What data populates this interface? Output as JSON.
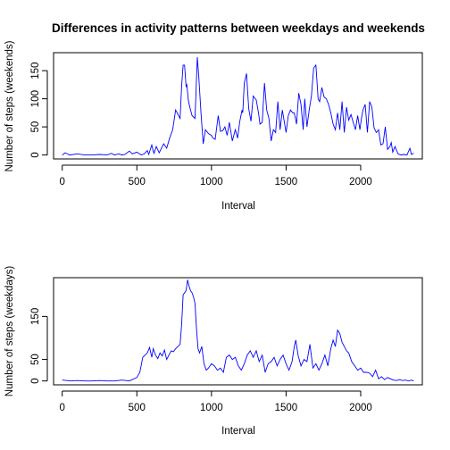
{
  "chart_data": [
    {
      "type": "line",
      "title": "Differences in activity patterns between weekdays and weekends",
      "xlabel": "Interval",
      "ylabel": "Number of steps (weekends)",
      "xlim": [
        -58,
        2413
      ],
      "ylim": [
        -7,
        182
      ],
      "xticks": [
        0,
        500,
        1000,
        1500,
        2000
      ],
      "yticks": [
        0,
        50,
        100,
        150
      ],
      "grid": false,
      "line_color": "#0000ff",
      "series": [
        {
          "x": [
            0,
            20,
            50,
            100,
            150,
            200,
            250,
            300,
            330,
            350,
            380,
            400,
            420,
            450,
            470,
            500,
            530,
            550,
            570,
            580,
            600,
            610,
            615,
            630,
            650,
            680,
            700,
            720,
            740,
            760,
            790,
            800,
            810,
            820,
            830,
            835,
            845,
            855,
            870,
            890,
            905,
            915,
            930,
            945,
            960,
            980,
            1000,
            1010,
            1025,
            1045,
            1060,
            1075,
            1090,
            1105,
            1120,
            1140,
            1160,
            1175,
            1190,
            1205,
            1210,
            1220,
            1235,
            1250,
            1265,
            1280,
            1300,
            1315,
            1325,
            1340,
            1355,
            1370,
            1385,
            1400,
            1415,
            1430,
            1445,
            1460,
            1475,
            1500,
            1515,
            1530,
            1545,
            1555,
            1570,
            1585,
            1600,
            1615,
            1625,
            1640,
            1655,
            1670,
            1685,
            1700,
            1715,
            1725,
            1740,
            1755,
            1770,
            1785,
            1800,
            1815,
            1830,
            1845,
            1860,
            1875,
            1890,
            1905,
            1920,
            1935,
            1950,
            1965,
            1980,
            1995,
            2005,
            2015,
            2030,
            2045,
            2060,
            2075,
            2090,
            2105,
            2120,
            2135,
            2150,
            2165,
            2180,
            2195,
            2205,
            2215,
            2230,
            2250,
            2270,
            2290,
            2310,
            2330,
            2340,
            2355
          ],
          "values": [
            0,
            4,
            0,
            2,
            0,
            0,
            1,
            0,
            3,
            0,
            2,
            0,
            1,
            7,
            2,
            5,
            0,
            2,
            8,
            1,
            18,
            7,
            3,
            15,
            4,
            20,
            12,
            30,
            45,
            80,
            65,
            122,
            160,
            160,
            122,
            125,
            98,
            85,
            70,
            65,
            174,
            140,
            75,
            20,
            45,
            38,
            35,
            30,
            28,
            70,
            42,
            43,
            50,
            35,
            58,
            25,
            45,
            30,
            60,
            80,
            75,
            128,
            145,
            82,
            60,
            105,
            98,
            75,
            55,
            58,
            128,
            80,
            65,
            25,
            45,
            40,
            95,
            45,
            80,
            40,
            70,
            80,
            75,
            75,
            55,
            110,
            90,
            45,
            100,
            50,
            80,
            105,
            155,
            160,
            100,
            95,
            120,
            103,
            100,
            90,
            75,
            55,
            45,
            75,
            45,
            95,
            40,
            85,
            62,
            72,
            58,
            45,
            70,
            45,
            65,
            80,
            90,
            40,
            95,
            85,
            48,
            40,
            45,
            18,
            20,
            50,
            10,
            15,
            22,
            5,
            15,
            2,
            0,
            1,
            0,
            12,
            1,
            3
          ]
        }
      ]
    },
    {
      "type": "line",
      "title": "",
      "xlabel": "Interval",
      "ylabel": "Number of steps (weekdays)",
      "xlim": [
        -58,
        2413
      ],
      "ylim": [
        -9,
        240
      ],
      "xticks": [
        0,
        500,
        1000,
        1500,
        2000
      ],
      "yticks": [
        0,
        50,
        150
      ],
      "grid": false,
      "line_color": "#0000ff",
      "series": [
        {
          "x": [
            0,
            30,
            60,
            100,
            150,
            200,
            250,
            300,
            350,
            400,
            450,
            500,
            520,
            540,
            555,
            570,
            585,
            600,
            610,
            625,
            640,
            655,
            670,
            685,
            700,
            715,
            730,
            745,
            760,
            775,
            790,
            800,
            810,
            820,
            830,
            840,
            850,
            860,
            870,
            880,
            890,
            900,
            910,
            920,
            935,
            950,
            965,
            980,
            1000,
            1020,
            1040,
            1060,
            1080,
            1100,
            1120,
            1140,
            1160,
            1180,
            1200,
            1220,
            1240,
            1260,
            1280,
            1300,
            1320,
            1340,
            1360,
            1380,
            1400,
            1420,
            1440,
            1460,
            1480,
            1500,
            1520,
            1540,
            1555,
            1565,
            1580,
            1600,
            1620,
            1640,
            1660,
            1680,
            1700,
            1720,
            1740,
            1760,
            1780,
            1800,
            1815,
            1830,
            1845,
            1860,
            1875,
            1890,
            1905,
            1920,
            1940,
            1960,
            1980,
            2000,
            2020,
            2040,
            2060,
            2080,
            2100,
            2120,
            2140,
            2160,
            2180,
            2200,
            2220,
            2240,
            2260,
            2280,
            2300,
            2320,
            2340,
            2355
          ],
          "values": [
            2,
            1,
            0,
            1,
            0,
            0,
            1,
            0,
            0,
            2,
            0,
            8,
            20,
            55,
            60,
            65,
            78,
            55,
            75,
            60,
            52,
            65,
            58,
            72,
            50,
            60,
            70,
            68,
            75,
            80,
            85,
            130,
            200,
            205,
            210,
            235,
            220,
            210,
            205,
            195,
            180,
            120,
            75,
            65,
            80,
            40,
            25,
            30,
            40,
            35,
            25,
            30,
            20,
            55,
            60,
            50,
            55,
            35,
            25,
            40,
            60,
            70,
            55,
            70,
            45,
            60,
            20,
            40,
            45,
            55,
            35,
            50,
            60,
            40,
            25,
            45,
            80,
            95,
            60,
            35,
            50,
            45,
            85,
            30,
            40,
            25,
            40,
            60,
            35,
            75,
            95,
            80,
            118,
            110,
            90,
            80,
            70,
            65,
            45,
            35,
            25,
            30,
            20,
            20,
            18,
            10,
            25,
            5,
            10,
            3,
            8,
            5,
            2,
            1,
            3,
            1,
            2,
            0,
            2,
            0
          ]
        }
      ]
    }
  ]
}
